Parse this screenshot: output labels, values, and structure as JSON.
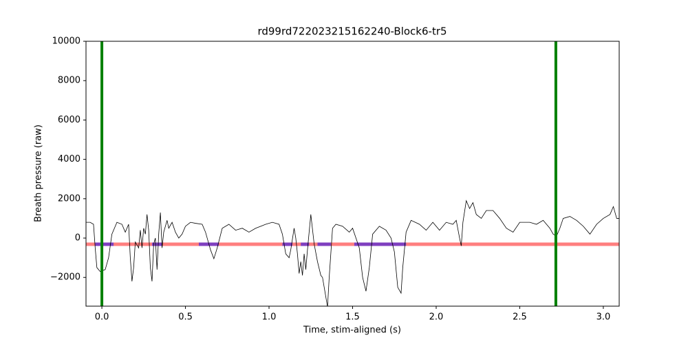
{
  "chart_data": {
    "type": "line",
    "title": "rd99rd722023215162240-Block6-tr5",
    "xlabel": "Time, stim-aligned (s)",
    "ylabel": "Breath pressure (raw)",
    "xlim": [
      -0.095,
      3.095
    ],
    "ylim": [
      -3460,
      10000
    ],
    "xticks": [
      {
        "value": 0,
        "label": "0.0"
      },
      {
        "value": 0.5,
        "label": "0.5"
      },
      {
        "value": 1,
        "label": "1.0"
      },
      {
        "value": 1.5,
        "label": "1.5"
      },
      {
        "value": 2,
        "label": "2.0"
      },
      {
        "value": 2.5,
        "label": "2.5"
      },
      {
        "value": 3,
        "label": "3.0"
      }
    ],
    "yticks": [
      {
        "value": -2000,
        "label": "−2000"
      },
      0,
      2000,
      4000,
      6000,
      8000,
      10000
    ],
    "trace": {
      "color": "#000000",
      "x": [
        -0.095,
        -0.07,
        -0.05,
        -0.04,
        -0.03,
        -0.01,
        0.02,
        0.04,
        0.06,
        0.09,
        0.12,
        0.14,
        0.16,
        0.17,
        0.18,
        0.19,
        0.2,
        0.22,
        0.23,
        0.24,
        0.25,
        0.26,
        0.27,
        0.28,
        0.29,
        0.3,
        0.31,
        0.32,
        0.33,
        0.34,
        0.35,
        0.36,
        0.37,
        0.39,
        0.4,
        0.42,
        0.44,
        0.46,
        0.48,
        0.5,
        0.53,
        0.56,
        0.6,
        0.62,
        0.65,
        0.67,
        0.69,
        0.72,
        0.76,
        0.8,
        0.84,
        0.88,
        0.92,
        0.98,
        1.02,
        1.06,
        1.08,
        1.1,
        1.12,
        1.13,
        1.15,
        1.16,
        1.17,
        1.18,
        1.19,
        1.2,
        1.21,
        1.22,
        1.23,
        1.25,
        1.27,
        1.29,
        1.31,
        1.32,
        1.33,
        1.35,
        1.36,
        1.38,
        1.4,
        1.44,
        1.48,
        1.5,
        1.52,
        1.54,
        1.56,
        1.58,
        1.6,
        1.62,
        1.66,
        1.7,
        1.73,
        1.75,
        1.77,
        1.79,
        1.8,
        1.82,
        1.85,
        1.9,
        1.94,
        1.98,
        2.02,
        2.06,
        2.1,
        2.12,
        2.14,
        2.15,
        2.16,
        2.18,
        2.2,
        2.22,
        2.24,
        2.27,
        2.3,
        2.34,
        2.38,
        2.42,
        2.46,
        2.5,
        2.56,
        2.6,
        2.64,
        2.68,
        2.7,
        2.72,
        2.74,
        2.76,
        2.8,
        2.84,
        2.88,
        2.92,
        2.96,
        3.0,
        3.04,
        3.06,
        3.08,
        3.095
      ],
      "y": [
        800,
        800,
        700,
        -500,
        -1500,
        -1700,
        -1600,
        -1000,
        200,
        800,
        700,
        300,
        700,
        -1000,
        -2200,
        -1500,
        -200,
        -500,
        400,
        -500,
        500,
        200,
        1200,
        400,
        -1500,
        -2200,
        -300,
        0,
        -1600,
        200,
        1300,
        -500,
        300,
        900,
        500,
        800,
        300,
        0,
        200,
        600,
        800,
        750,
        700,
        300,
        -600,
        -1050,
        -500,
        500,
        700,
        400,
        500,
        300,
        500,
        700,
        800,
        700,
        200,
        -800,
        -1000,
        -600,
        500,
        0,
        -800,
        -1800,
        -1200,
        -1900,
        -800,
        -1600,
        -600,
        1200,
        -300,
        -1200,
        -1900,
        -2000,
        -2500,
        -3500,
        -2000,
        500,
        700,
        600,
        300,
        500,
        0,
        -500,
        -2000,
        -2700,
        -1500,
        200,
        600,
        400,
        0,
        -700,
        -2500,
        -2800,
        -1500,
        300,
        900,
        700,
        400,
        800,
        400,
        800,
        700,
        900,
        0,
        -400,
        800,
        1900,
        1500,
        1800,
        1200,
        1000,
        1400,
        1400,
        1000,
        500,
        300,
        800,
        800,
        700,
        900,
        500,
        200,
        100,
        500,
        1000,
        1100,
        900,
        600,
        200,
        700,
        1000,
        1200,
        1600,
        1000,
        1000
      ]
    },
    "vlines": {
      "color": "#008000",
      "x": [
        0,
        2.716
      ]
    },
    "baseline": {
      "color": "#ff0000",
      "y": -315
    },
    "segments": {
      "color": "#0000ff",
      "x": [
        [
          -0.04,
          0.07
        ],
        [
          0.3,
          0.36
        ],
        [
          0.58,
          0.7
        ],
        [
          1.08,
          1.14
        ],
        [
          1.19,
          1.24
        ],
        [
          1.29,
          1.37
        ],
        [
          1.51,
          1.82
        ]
      ]
    }
  }
}
